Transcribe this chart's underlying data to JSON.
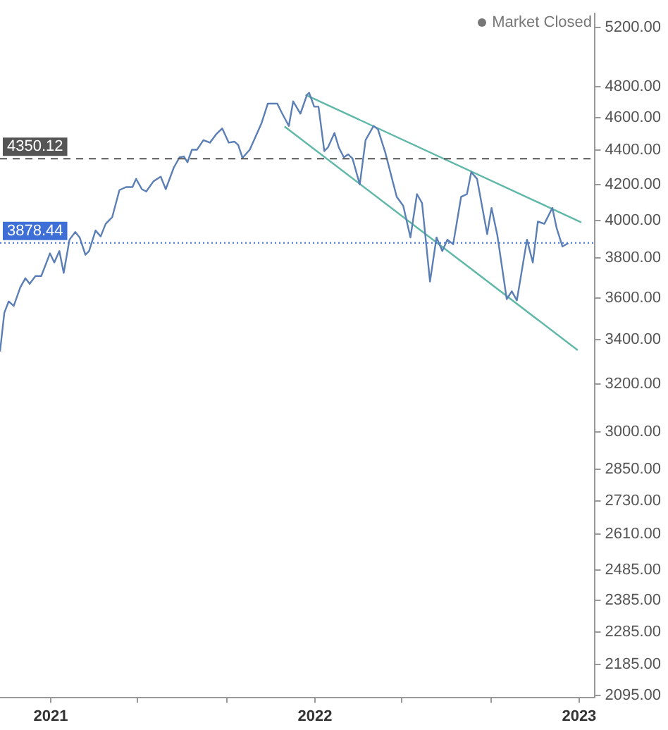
{
  "chart_data": {
    "type": "line",
    "annotations": [
      "Market Closed"
    ],
    "series": [
      {
        "color": "#5b7fb5",
        "x": [
          "2020-10-23",
          "2020-10-29",
          "2020-11-04",
          "2020-11-11",
          "2020-11-20",
          "2020-11-27",
          "2020-12-03",
          "2020-12-11",
          "2020-12-19",
          "2020-12-31",
          "2021-01-06",
          "2021-01-13",
          "2021-01-19",
          "2021-01-27",
          "2021-02-04",
          "2021-02-10",
          "2021-02-18",
          "2021-02-23",
          "2021-03-04",
          "2021-03-11",
          "2021-03-18",
          "2021-03-27",
          "2021-04-06",
          "2021-04-15",
          "2021-04-24",
          "2021-04-29",
          "2021-05-07",
          "2021-05-13",
          "2021-05-23",
          "2021-06-02",
          "2021-06-09",
          "2021-06-20",
          "2021-06-28",
          "2021-07-04",
          "2021-07-09",
          "2021-07-15",
          "2021-07-22",
          "2021-07-31",
          "2021-08-09",
          "2021-08-18",
          "2021-08-26",
          "2021-09-04",
          "2021-09-12",
          "2021-09-17",
          "2021-09-23",
          "2021-10-03",
          "2021-10-19",
          "2021-10-28",
          "2021-11-10",
          "2021-11-16",
          "2021-11-26",
          "2021-12-02",
          "2021-12-12",
          "2021-12-21",
          "2021-12-24",
          "2021-12-31",
          "2022-01-06",
          "2022-01-14",
          "2022-01-19",
          "2022-01-28",
          "2022-02-03",
          "2022-02-10",
          "2022-02-16",
          "2022-02-22",
          "2022-03-04",
          "2022-03-12",
          "2022-03-23",
          "2022-03-29",
          "2022-04-08",
          "2022-04-24",
          "2022-05-03",
          "2022-05-13",
          "2022-05-22",
          "2022-05-29",
          "2022-06-09",
          "2022-06-18",
          "2022-06-26",
          "2022-07-03",
          "2022-07-11",
          "2022-07-22",
          "2022-07-30",
          "2022-08-05",
          "2022-08-13",
          "2022-08-27",
          "2022-09-02",
          "2022-09-10",
          "2022-09-23",
          "2022-09-30",
          "2022-10-07",
          "2022-10-21",
          "2022-10-29",
          "2022-11-05",
          "2022-11-14",
          "2022-11-25",
          "2022-12-01",
          "2022-12-09",
          "2022-12-17"
        ],
        "values": [
          3346,
          3527,
          3582,
          3560,
          3651,
          3697,
          3669,
          3708,
          3708,
          3824,
          3777,
          3836,
          3724,
          3896,
          3937,
          3908,
          3817,
          3836,
          3945,
          3913,
          3981,
          4017,
          4168,
          4185,
          4185,
          4232,
          4173,
          4160,
          4218,
          4245,
          4173,
          4297,
          4358,
          4363,
          4329,
          4403,
          4403,
          4461,
          4446,
          4499,
          4533,
          4446,
          4452,
          4432,
          4355,
          4403,
          4562,
          4689,
          4689,
          4633,
          4548,
          4703,
          4625,
          4744,
          4758,
          4669,
          4669,
          4395,
          4417,
          4505,
          4417,
          4358,
          4376,
          4350,
          4200,
          4461,
          4548,
          4528,
          4390,
          4130,
          4080,
          3908,
          4145,
          4095,
          3680,
          3908,
          3836,
          3896,
          3872,
          4130,
          4145,
          4271,
          4232,
          3925,
          4068,
          3920,
          3593,
          3632,
          3587,
          3896,
          3777,
          3993,
          3981,
          4068,
          3957,
          3860,
          3878
        ]
      },
      {
        "type": "line",
        "color": "#5fb8a8",
        "x": [
          "2021-12-19",
          "2023-01-04"
        ],
        "values": [
          4745,
          3989
        ]
      },
      {
        "type": "line",
        "color": "#5fb8a8",
        "x": [
          "2021-11-20",
          "2022-12-30"
        ],
        "values": [
          4545,
          3352
        ]
      }
    ],
    "xlim": [
      "2020-10-23",
      "2023-01-23"
    ],
    "xticks": [
      {
        "value": "2021-01-01",
        "label": "2021"
      },
      {
        "value": "2021-05-01",
        "label": null
      },
      {
        "value": "2021-09-01",
        "label": null
      },
      {
        "value": "2022-01-01",
        "label": "2022"
      },
      {
        "value": "2022-05-01",
        "label": null
      },
      {
        "value": "2022-09-01",
        "label": null
      },
      {
        "value": "2023-01-01",
        "label": "2023"
      }
    ],
    "ylim": [
      2090,
      5300
    ],
    "yticks": [
      {
        "value": 2095,
        "label": "2095.00"
      },
      {
        "value": 2185,
        "label": "2185.00"
      },
      {
        "value": 2285,
        "label": "2285.00"
      },
      {
        "value": 2385,
        "label": "2385.00"
      },
      {
        "value": 2485,
        "label": "2485.00"
      },
      {
        "value": 2610,
        "label": "2610.00"
      },
      {
        "value": 2730,
        "label": "2730.00"
      },
      {
        "value": 2850,
        "label": "2850.00"
      },
      {
        "value": 3000,
        "label": "3000.00"
      },
      {
        "value": 3200,
        "label": "3200.00"
      },
      {
        "value": 3400,
        "label": "3400.00"
      },
      {
        "value": 3600,
        "label": "3600.00"
      },
      {
        "value": 3800,
        "label": "3800.00"
      },
      {
        "value": 4000,
        "label": "4000.00"
      },
      {
        "value": 4200,
        "label": "4200.00"
      },
      {
        "value": 4400,
        "label": "4400.00"
      },
      {
        "value": 4600,
        "label": "4600.00"
      },
      {
        "value": 4800,
        "label": "4800.00"
      },
      {
        "value": 5200,
        "label": "5200.00"
      }
    ],
    "ref_lines": [
      {
        "axis": "y",
        "value": 4350.12,
        "label": "4350.12",
        "color": "#555555",
        "line_style": "dashed"
      },
      {
        "axis": "y",
        "value": 3878.44,
        "label": "3878.44",
        "color": "#3d6fd6",
        "line_style": "dotted"
      }
    ],
    "log": "y",
    "grid": false,
    "legend": false,
    "marker": "none",
    "line_style": "solid"
  }
}
